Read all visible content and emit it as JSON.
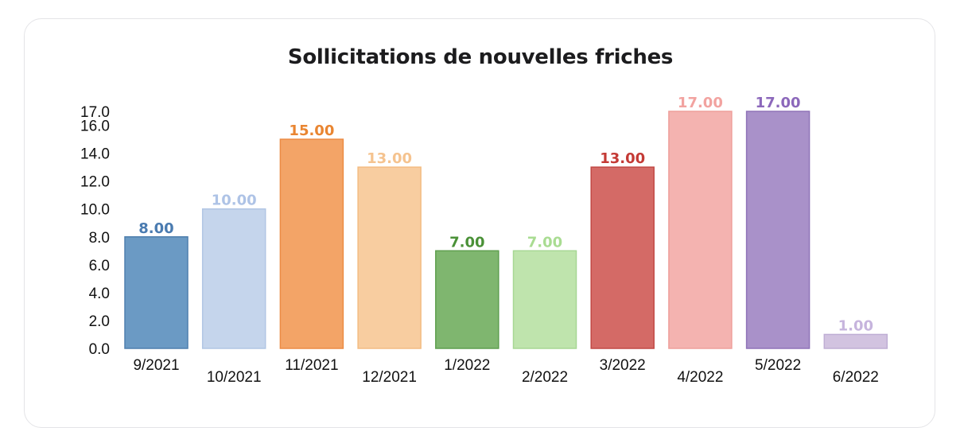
{
  "chart_data": {
    "type": "bar",
    "title": "Sollicitations de nouvelles friches",
    "xlabel": "",
    "ylabel": "",
    "ylim": [
      0,
      17
    ],
    "yticks": [
      "0.0",
      "2.0",
      "4.0",
      "6.0",
      "8.0",
      "10.0",
      "12.0",
      "14.0",
      "16.0",
      "17.0"
    ],
    "ytick_values": [
      0,
      2,
      4,
      6,
      8,
      10,
      12,
      14,
      16,
      17
    ],
    "categories": [
      "9/2021",
      "10/2021",
      "11/2021",
      "12/2021",
      "1/2022",
      "2/2022",
      "3/2022",
      "4/2022",
      "5/2022",
      "6/2022"
    ],
    "values": [
      8,
      10,
      15,
      13,
      7,
      7,
      13,
      17,
      17,
      1
    ],
    "value_labels": [
      "8.00",
      "10.00",
      "15.00",
      "13.00",
      "7.00",
      "7.00",
      "13.00",
      "17.00",
      "17.00",
      "1.00"
    ],
    "bar_colors": [
      "#6b9ac4",
      "#c5d5ec",
      "#f3a467",
      "#f8cda0",
      "#7fb66f",
      "#bfe4ad",
      "#d46a66",
      "#f4b3b0",
      "#a991c9",
      "#d2c3e0"
    ],
    "bar_border_colors": [
      "#4e7fae",
      "#b1c6e4",
      "#ec8c45",
      "#f3bc82",
      "#5e9f4e",
      "#a7d794",
      "#c24945",
      "#ef9f9b",
      "#8f73b8",
      "#bfaed4"
    ],
    "label_colors": [
      "#4a7bb0",
      "#aec3e6",
      "#e98531",
      "#f5c38f",
      "#4a9137",
      "#a9dc92",
      "#c43a35",
      "#f2a3a0",
      "#8c68bb",
      "#c6b4dd"
    ],
    "grid": false,
    "legend": "none"
  }
}
